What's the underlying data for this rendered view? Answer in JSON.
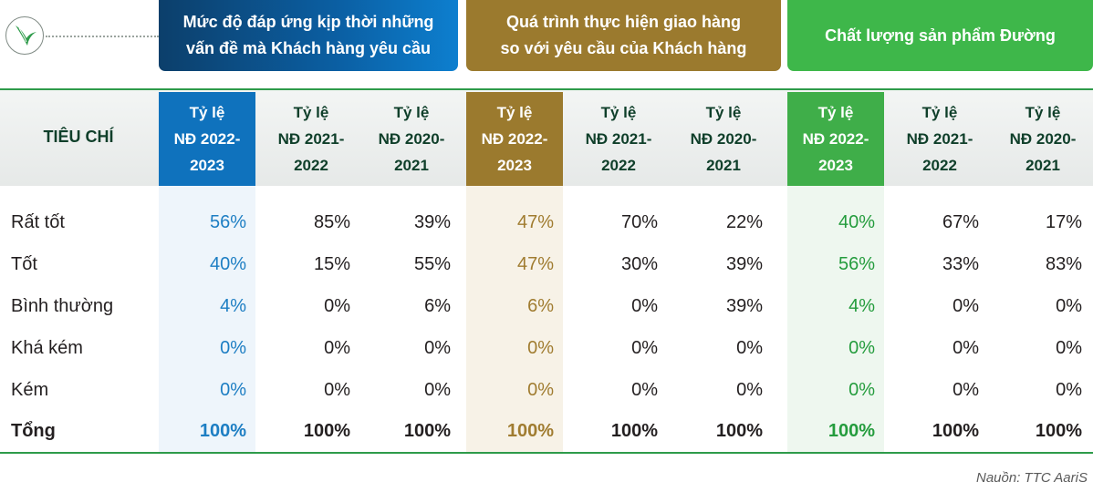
{
  "groups": [
    {
      "title_line1": "Mức độ đáp ứng kịp thời những",
      "title_line2": "vấn đề mà Khách hàng yêu cầu",
      "color": "#0b5fa3"
    },
    {
      "title_line1": "Quá trình thực hiện giao hàng",
      "title_line2": "so với yêu cầu của Khách hàng",
      "color": "#9b7a2e"
    },
    {
      "title_line1": "Chất lượng sản phẩm Đường",
      "title_line2": "",
      "color": "#3eb74a"
    }
  ],
  "header": {
    "criteria_label": "TIÊU CHÍ",
    "columns": [
      {
        "line1": "Tỷ lệ",
        "line2": "NĐ 2022-",
        "line3": "2023"
      },
      {
        "line1": "Tỷ lệ",
        "line2": "NĐ 2021-",
        "line3": "2022"
      },
      {
        "line1": "Tỷ lệ",
        "line2": "NĐ 2020-",
        "line3": "2021"
      },
      {
        "line1": "Tỷ lệ",
        "line2": "NĐ 2022-",
        "line3": "2023"
      },
      {
        "line1": "Tỷ lệ",
        "line2": "NĐ 2021-",
        "line3": "2022"
      },
      {
        "line1": "Tỷ lệ",
        "line2": "NĐ 2020-",
        "line3": "2021"
      },
      {
        "line1": "Tỷ lệ",
        "line2": "NĐ 2022-",
        "line3": "2023"
      },
      {
        "line1": "Tỷ lệ",
        "line2": "NĐ 2021-",
        "line3": "2022"
      },
      {
        "line1": "Tỷ lệ",
        "line2": "NĐ 2020-",
        "line3": "2021"
      }
    ]
  },
  "rows": [
    {
      "label": "Rất tốt",
      "values": [
        "56%",
        "85%",
        "39%",
        "47%",
        "70%",
        "22%",
        "40%",
        "67%",
        "17%"
      ]
    },
    {
      "label": "Tốt",
      "values": [
        "40%",
        "15%",
        "55%",
        "47%",
        "30%",
        "39%",
        "56%",
        "33%",
        "83%"
      ]
    },
    {
      "label": "Bình thường",
      "values": [
        "4%",
        "0%",
        "6%",
        "6%",
        "0%",
        "39%",
        "4%",
        "0%",
        "0%"
      ]
    },
    {
      "label": "Khá kém",
      "values": [
        "0%",
        "0%",
        "0%",
        "0%",
        "0%",
        "0%",
        "0%",
        "0%",
        "0%"
      ]
    },
    {
      "label": "Kém",
      "values": [
        "0%",
        "0%",
        "0%",
        "0%",
        "0%",
        "0%",
        "0%",
        "0%",
        "0%"
      ]
    },
    {
      "label": "Tổng",
      "values": [
        "100%",
        "100%",
        "100%",
        "100%",
        "100%",
        "100%",
        "100%",
        "100%",
        "100%"
      ]
    }
  ],
  "source": "Nauồn: TTC AariS",
  "logo_icon": "leaf-logo-icon"
}
